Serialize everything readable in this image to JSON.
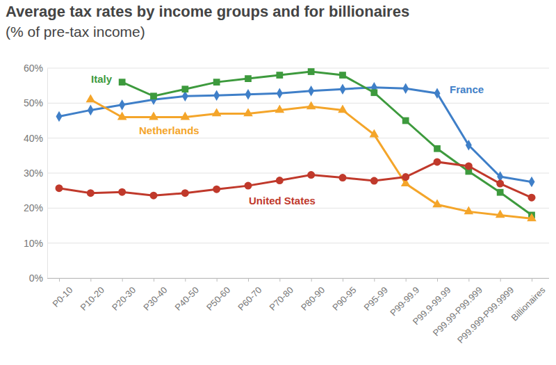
{
  "chart_data": {
    "type": "line",
    "title": "Average tax rates by income groups and for billionaires",
    "subtitle": "(% of pre-tax income)",
    "categories": [
      "P0-10",
      "P10-20",
      "P20-30",
      "P30-40",
      "P40-50",
      "P50-60",
      "P60-70",
      "P70-80",
      "P80-90",
      "P90-95",
      "P95-99",
      "P99-99.9",
      "P99.9-99.99",
      "P99.99-P99.999",
      "P99.999-P99.9999",
      "Billionaires"
    ],
    "series": [
      {
        "name": "France",
        "color": "#3f7fc8",
        "marker": "diamond",
        "values": [
          46.2,
          48,
          49.5,
          51,
          52,
          52.2,
          52.5,
          52.8,
          53.5,
          54,
          54.5,
          54.2,
          52.8,
          38,
          29,
          27.5
        ]
      },
      {
        "name": "Italy",
        "color": "#3d9a3d",
        "marker": "square",
        "values": [
          null,
          null,
          56,
          52,
          54,
          56,
          57,
          58,
          59,
          58,
          53,
          45,
          37,
          30.5,
          24.5,
          18
        ]
      },
      {
        "name": "Netherlands",
        "color": "#f4a52a",
        "marker": "triangle",
        "values": [
          null,
          51,
          46,
          46,
          46,
          47,
          47,
          48,
          49,
          48,
          41,
          27,
          21,
          19,
          18,
          17
        ]
      },
      {
        "name": "United States",
        "color": "#c0392b",
        "marker": "circle",
        "values": [
          25.7,
          24.3,
          24.6,
          23.6,
          24.3,
          25.4,
          26.4,
          27.9,
          29.5,
          28.7,
          27.8,
          28.9,
          33.2,
          32,
          27,
          23
        ]
      }
    ],
    "ylim": [
      0,
      60
    ],
    "yticks": [
      {
        "value": 0,
        "label": "0%"
      },
      {
        "value": 10,
        "label": "10%"
      },
      {
        "value": 20,
        "label": "20%"
      },
      {
        "value": 30,
        "label": "30%"
      },
      {
        "value": 40,
        "label": "40%"
      },
      {
        "value": 50,
        "label": "50%"
      },
      {
        "value": 60,
        "label": "60%"
      }
    ],
    "grid": true
  }
}
